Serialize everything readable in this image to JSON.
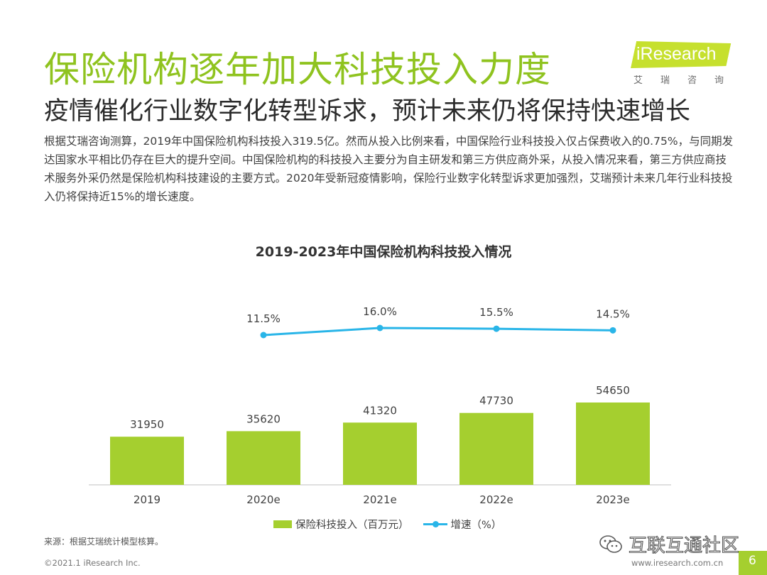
{
  "header": {
    "title": "保险机构逐年加大科技投入力度",
    "subtitle": "疫情催化行业数字化转型诉求，预计未来仍将保持快速增长",
    "body": "根据艾瑞咨询测算，2019年中国保险机构科技投入319.5亿。然而从投入比例来看，中国保险行业科技投入仅占保费收入的0.75%，与同期发达国家水平相比仍存在巨大的提升空间。中国保险机构的科技投入主要分为自主研发和第三方供应商外采，从投入情况来看，第三方供应商技术服务外采仍然是保险机构科技建设的主要方式。2020年受新冠疫情影响，保险行业数字化转型诉求更加强烈，艾瑞预计未来几年行业科技投入仍将保持近15%的增长速度。"
  },
  "logo": {
    "brand": "iResearch",
    "cn": "艾瑞咨询"
  },
  "chart_data": {
    "type": "bar",
    "title": "2019-2023年中国保险机构科技投入情况",
    "categories": [
      "2019",
      "2020e",
      "2021e",
      "2022e",
      "2023e"
    ],
    "series": [
      {
        "name": "保险科技投入（百万元）",
        "type": "bar",
        "color": "#a5cf2f",
        "values": [
          31950,
          35620,
          41320,
          47730,
          54650
        ]
      },
      {
        "name": "增速（%）",
        "type": "line",
        "color": "#29b5e8",
        "values": [
          null,
          11.5,
          16.0,
          15.5,
          14.5
        ],
        "labels": [
          "",
          "11.5%",
          "16.0%",
          "15.5%",
          "14.5%"
        ]
      }
    ],
    "grid": false,
    "legend_position": "bottom"
  },
  "footer": {
    "source": "来源：根据艾瑞统计模型核算。",
    "copyright": "©2021.1 iResearch Inc.",
    "website": "www.iresearch.com.cn",
    "page": "6",
    "watermark": "互联互通社区"
  }
}
